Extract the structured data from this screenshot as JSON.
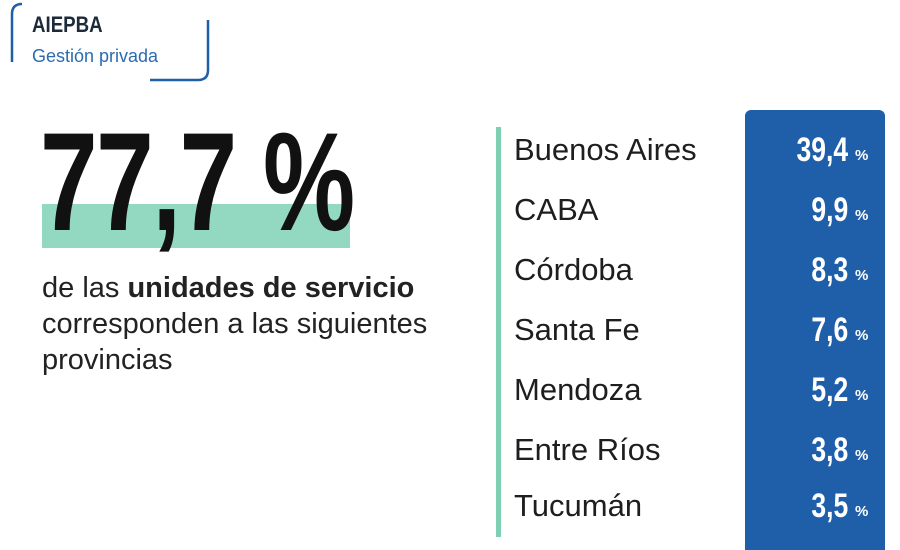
{
  "logo": {
    "title": "AIEPBA",
    "subtitle": "Gestión privada"
  },
  "headline": "77,7 %",
  "description": {
    "parts": [
      "de las",
      "unidades de servicio",
      "corresponden a las siguientes provincias"
    ]
  },
  "unit": "%",
  "provinces": [
    {
      "name": "Buenos Aires",
      "value": "39,4"
    },
    {
      "name": "CABA",
      "value": "9,9"
    },
    {
      "name": "Córdoba",
      "value": "8,3"
    },
    {
      "name": "Santa Fe",
      "value": "7,6"
    },
    {
      "name": "Mendoza",
      "value": "5,2"
    },
    {
      "name": "Entre Ríos",
      "value": "3,8"
    },
    {
      "name": "Tucumán",
      "value": "3,5"
    }
  ]
}
